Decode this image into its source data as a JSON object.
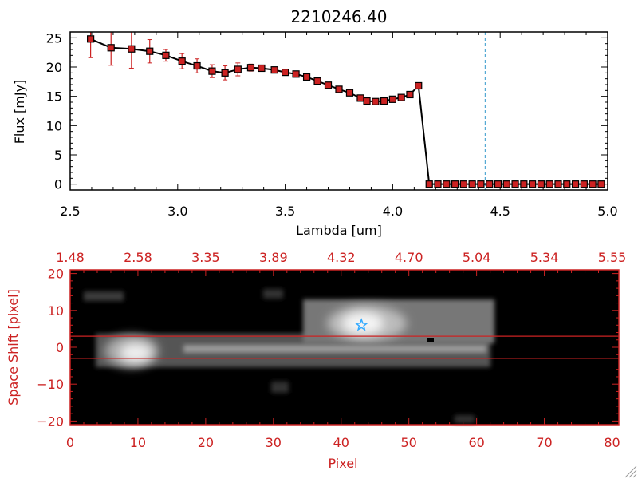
{
  "colors": {
    "axis_red": "#cc2222",
    "line": "#000000",
    "marker": "#cc2222",
    "dashed": "#3399cc",
    "star": "#33aaff",
    "image_bg": "#000000"
  },
  "chart_data": [
    {
      "type": "line",
      "title": "2210246.40",
      "xlabel": "Lambda [um]",
      "ylabel": "Flux [mJy]",
      "xlim": [
        2.5,
        5.0
      ],
      "ylim": [
        -1,
        26
      ],
      "x_ticks": [
        2.5,
        3.0,
        3.5,
        4.0,
        4.5,
        5.0
      ],
      "x_tick_labels": [
        "2.5",
        "3.0",
        "3.5",
        "4.0",
        "4.5",
        "5.0"
      ],
      "y_ticks": [
        0,
        5,
        10,
        15,
        20,
        25
      ],
      "y_tick_labels": [
        "0",
        "5",
        "10",
        "15",
        "20",
        "25"
      ],
      "dashed_vline_x": 4.43,
      "series": [
        {
          "name": "flux",
          "x": [
            2.595,
            2.69,
            2.785,
            2.87,
            2.945,
            3.02,
            3.09,
            3.16,
            3.22,
            3.28,
            3.34,
            3.39,
            3.45,
            3.5,
            3.55,
            3.6,
            3.65,
            3.7,
            3.75,
            3.8,
            3.85,
            3.88,
            3.92,
            3.96,
            4.0,
            4.04,
            4.08,
            4.12,
            4.17,
            4.21,
            4.25,
            4.29,
            4.33,
            4.37,
            4.41,
            4.45,
            4.49,
            4.53,
            4.57,
            4.61,
            4.65,
            4.69,
            4.73,
            4.77,
            4.81,
            4.85,
            4.89,
            4.93,
            4.97
          ],
          "y": [
            24.8,
            23.3,
            23.1,
            22.7,
            22.0,
            21.0,
            20.2,
            19.3,
            19.0,
            19.6,
            19.9,
            19.8,
            19.5,
            19.1,
            18.8,
            18.3,
            17.6,
            16.9,
            16.2,
            15.6,
            14.7,
            14.2,
            14.1,
            14.2,
            14.5,
            14.8,
            15.3,
            16.8,
            0,
            0,
            0,
            0,
            0,
            0,
            0,
            0,
            0,
            0,
            0,
            0,
            0,
            0,
            0,
            0,
            0,
            0,
            0,
            0,
            0
          ],
          "yerr": [
            3.2,
            3.0,
            3.3,
            2.0,
            1.0,
            1.3,
            1.2,
            1.1,
            1.2,
            1.1,
            0.6,
            0.4,
            0.4,
            0.3,
            0.3,
            0.3,
            0.3,
            0.3,
            0.3,
            0.3,
            0.4,
            0.4,
            0.4,
            0.4,
            0.4,
            0.4,
            0.4,
            0.5,
            0,
            0,
            0,
            0,
            0,
            0,
            0,
            0,
            0,
            0,
            0,
            0,
            0,
            0,
            0,
            0,
            0,
            0,
            0,
            0,
            0
          ]
        }
      ]
    },
    {
      "type": "heatmap",
      "xlabel": "Pixel",
      "ylabel": "Space Shift [pixel]",
      "xlim": [
        0,
        81
      ],
      "ylim": [
        -21,
        21
      ],
      "x_ticks": [
        0,
        10,
        20,
        30,
        40,
        50,
        60,
        70,
        80
      ],
      "x_tick_labels": [
        "0",
        "10",
        "20",
        "30",
        "40",
        "50",
        "60",
        "70",
        "80"
      ],
      "y_ticks": [
        -20,
        -10,
        0,
        10,
        20
      ],
      "y_tick_labels": [
        "−20",
        "−10",
        "0",
        "10",
        "20"
      ],
      "top_axis_tick_labels": [
        "1.48",
        "2.58",
        "3.35",
        "3.89",
        "4.32",
        "4.70",
        "5.04",
        "5.34",
        "5.55"
      ],
      "hlines_y": [
        3,
        -3
      ],
      "star_marker": {
        "x": 43,
        "y": 6
      }
    }
  ]
}
